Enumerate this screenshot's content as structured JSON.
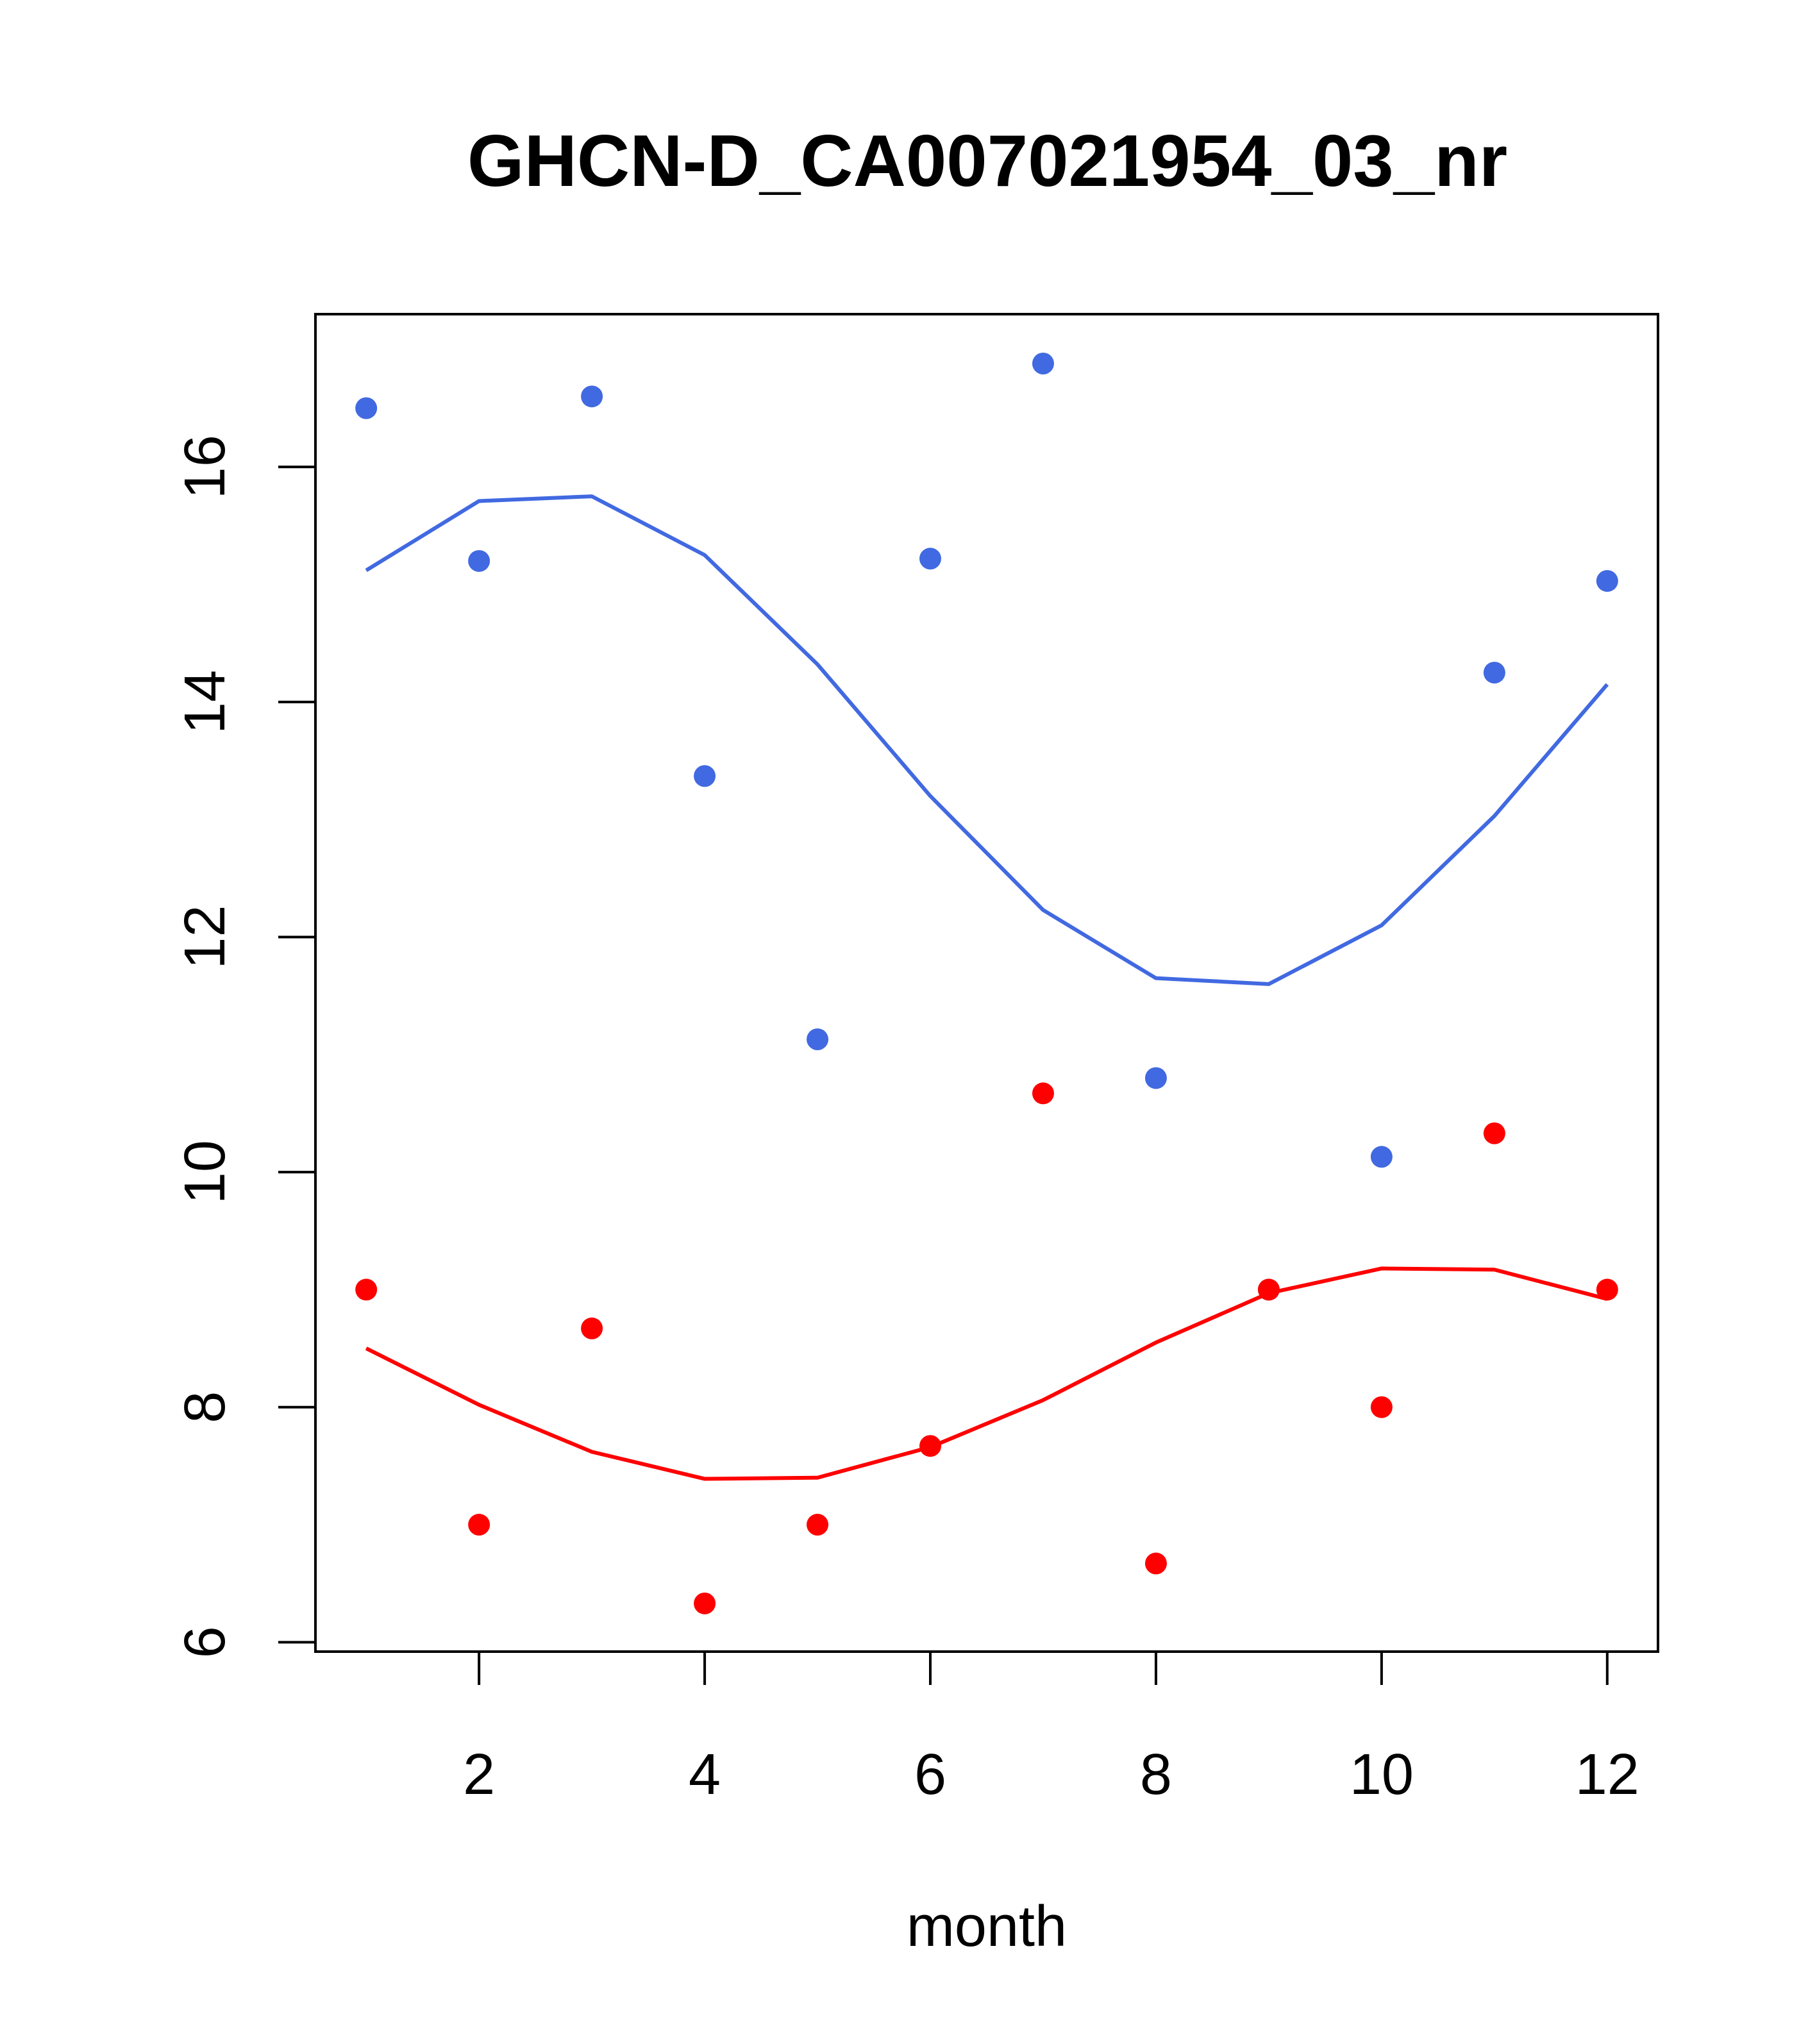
{
  "chart_data": {
    "type": "scatter",
    "title": "GHCN-D_CA007021954_03_nr",
    "xlabel": "month",
    "ylabel": "",
    "xlim": [
      0.55,
      12.45
    ],
    "ylim": [
      5.92,
      17.3
    ],
    "xticks": [
      2,
      4,
      6,
      8,
      10,
      12
    ],
    "yticks": [
      6,
      8,
      10,
      12,
      14,
      16
    ],
    "grid": false,
    "legend": "none",
    "series": [
      {
        "color": "#4169e1",
        "points": {
          "x": [
            1,
            2,
            3,
            4,
            5,
            6,
            7,
            8,
            9,
            10,
            11,
            12
          ],
          "y": [
            16.5,
            15.2,
            16.6,
            13.37,
            11.13,
            15.22,
            16.88,
            10.8,
            9.0,
            10.13,
            14.25,
            15.03
          ]
        },
        "smooth": {
          "x": [
            1,
            2,
            3,
            4,
            5,
            6,
            7,
            8,
            9,
            10,
            11,
            12
          ],
          "y": [
            15.12,
            15.71,
            15.75,
            15.25,
            14.32,
            13.2,
            12.23,
            11.65,
            11.6,
            12.1,
            13.03,
            14.15
          ]
        }
      },
      {
        "color": "#ff0000",
        "points": {
          "x": [
            1,
            2,
            3,
            4,
            5,
            6,
            7,
            8,
            9,
            10,
            11,
            12
          ],
          "y": [
            9.0,
            7.0,
            8.67,
            6.33,
            7.0,
            7.67,
            10.67,
            6.67,
            9.0,
            8.0,
            10.33,
            9.0
          ]
        },
        "smooth": {
          "x": [
            1,
            2,
            3,
            4,
            5,
            6,
            7,
            8,
            9,
            10,
            11,
            12
          ],
          "y": [
            8.5,
            8.02,
            7.62,
            7.39,
            7.4,
            7.66,
            8.06,
            8.55,
            8.97,
            9.18,
            9.17,
            8.92
          ]
        }
      }
    ]
  }
}
